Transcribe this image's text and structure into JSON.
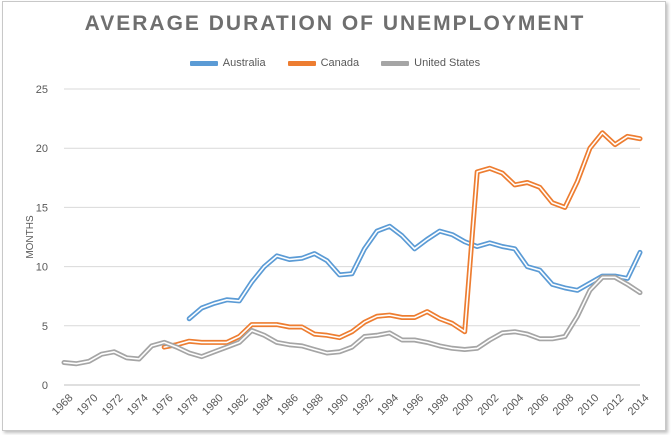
{
  "chart_data": {
    "type": "line",
    "title": "AVERAGE DURATION OF UNEMPLOYMENT",
    "xlabel": "",
    "ylabel": "MONTHS",
    "ylim": [
      0,
      25
    ],
    "xlim": [
      1968,
      2014
    ],
    "y_ticks": [
      0,
      5,
      10,
      15,
      20,
      25
    ],
    "x_ticks": [
      1968,
      1970,
      1972,
      1974,
      1976,
      1978,
      1980,
      1982,
      1984,
      1986,
      1988,
      1990,
      1992,
      1994,
      1996,
      1998,
      2000,
      2002,
      2004,
      2006,
      2008,
      2010,
      2012,
      2014
    ],
    "grid": "horizontal",
    "legend_position": "top",
    "series": [
      {
        "name": "Australia",
        "color": "#5b9bd5",
        "x": [
          1978,
          1979,
          1980,
          1981,
          1982,
          1983,
          1984,
          1985,
          1986,
          1987,
          1988,
          1989,
          1990,
          1991,
          1992,
          1993,
          1994,
          1995,
          1996,
          1997,
          1998,
          1999,
          2000,
          2001,
          2002,
          2003,
          2004,
          2005,
          2006,
          2007,
          2008,
          2009,
          2010,
          2011,
          2012,
          2013,
          2014
        ],
        "values": [
          5.6,
          6.5,
          6.9,
          7.2,
          7.1,
          8.7,
          10.0,
          10.9,
          10.6,
          10.7,
          11.1,
          10.5,
          9.3,
          9.4,
          11.5,
          13.0,
          13.4,
          12.6,
          11.5,
          12.3,
          13.0,
          12.7,
          12.1,
          11.7,
          12.0,
          11.7,
          11.5,
          10.0,
          9.7,
          8.5,
          8.2,
          8.0,
          8.6,
          9.2,
          9.2,
          9.0,
          11.2
        ]
      },
      {
        "name": "Canada",
        "color": "#ed7d31",
        "x": [
          1976,
          1977,
          1978,
          1979,
          1980,
          1981,
          1982,
          1983,
          1984,
          1985,
          1986,
          1987,
          1988,
          1989,
          1990,
          1991,
          1992,
          1993,
          1994,
          1995,
          1996,
          1997,
          1998,
          1999,
          2000,
          2001,
          2002,
          2003,
          2004,
          2005,
          2006,
          2007,
          2008,
          2009,
          2010,
          2011,
          2012,
          2013,
          2014
        ],
        "values": [
          3.2,
          3.4,
          3.7,
          3.6,
          3.6,
          3.6,
          4.1,
          5.1,
          5.1,
          5.1,
          4.9,
          4.9,
          4.3,
          4.2,
          4.0,
          4.5,
          5.3,
          5.8,
          5.9,
          5.7,
          5.7,
          6.2,
          5.6,
          5.2,
          4.5,
          18.0,
          18.3,
          17.9,
          16.9,
          17.1,
          16.7,
          15.4,
          15.0,
          17.2,
          20.0,
          21.3,
          20.3,
          21.0,
          20.8
        ]
      },
      {
        "name": "United States",
        "color": "#a5a5a5",
        "x": [
          1968,
          1969,
          1970,
          1971,
          1972,
          1973,
          1974,
          1975,
          1976,
          1977,
          1978,
          1979,
          1980,
          1981,
          1982,
          1983,
          1984,
          1985,
          1986,
          1987,
          1988,
          1989,
          1990,
          1991,
          1992,
          1993,
          1994,
          1995,
          1996,
          1997,
          1998,
          1999,
          2000,
          2001,
          2002,
          2003,
          2004,
          2005,
          2006,
          2007,
          2008,
          2009,
          2010,
          2011,
          2012,
          2013,
          2014
        ],
        "values": [
          1.9,
          1.8,
          2.0,
          2.6,
          2.8,
          2.3,
          2.2,
          3.3,
          3.6,
          3.2,
          2.7,
          2.4,
          2.8,
          3.2,
          3.6,
          4.6,
          4.2,
          3.6,
          3.4,
          3.3,
          3.0,
          2.7,
          2.8,
          3.2,
          4.1,
          4.2,
          4.4,
          3.8,
          3.8,
          3.6,
          3.3,
          3.1,
          3.0,
          3.1,
          3.8,
          4.4,
          4.5,
          4.3,
          3.9,
          3.9,
          4.1,
          5.8,
          8.0,
          9.1,
          9.1,
          8.5,
          7.8
        ]
      }
    ]
  }
}
